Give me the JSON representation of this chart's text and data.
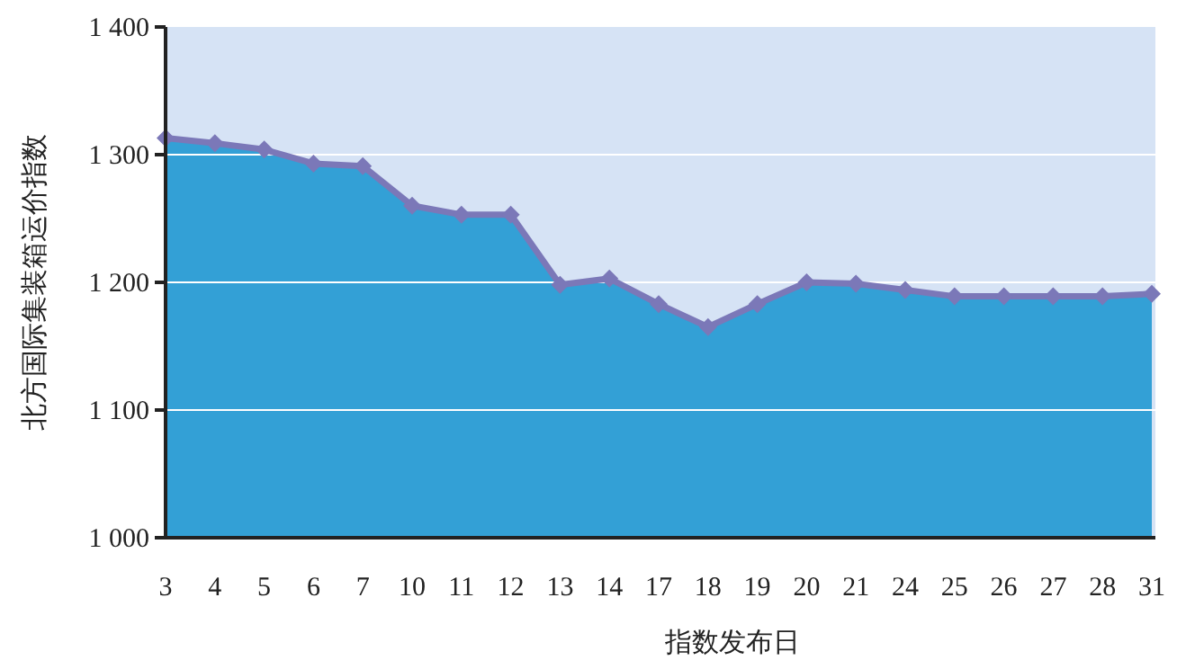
{
  "chart_data": {
    "type": "area",
    "xlabel": "指数发布日",
    "ylabel": "北方国际集装箱运价指数",
    "categories": [
      "3",
      "4",
      "5",
      "6",
      "7",
      "10",
      "11",
      "12",
      "13",
      "14",
      "17",
      "18",
      "19",
      "20",
      "21",
      "24",
      "25",
      "26",
      "27",
      "28",
      "31"
    ],
    "series": [
      {
        "color": "#33a0d6",
        "values": [
          1313,
          1309,
          1304,
          1293,
          1291,
          1260,
          1253,
          1253,
          1198,
          1203,
          1183,
          1165,
          1183,
          1200,
          1199,
          1194,
          1189,
          1189,
          1189,
          1189,
          1191
        ]
      }
    ],
    "ylim": [
      1000,
      1400
    ],
    "yticks": [
      {
        "value": 1000,
        "label": "1 000"
      },
      {
        "value": 1100,
        "label": "1 100"
      },
      {
        "value": 1200,
        "label": "1 200"
      },
      {
        "value": 1300,
        "label": "1 300"
      },
      {
        "value": 1400,
        "label": "1 400"
      }
    ],
    "bands": [
      {
        "axis": "y",
        "from": 1000,
        "to": 1400,
        "color": "#d6e3f5"
      }
    ],
    "grid": "y",
    "marker": "diamond",
    "line_style": "solid"
  }
}
